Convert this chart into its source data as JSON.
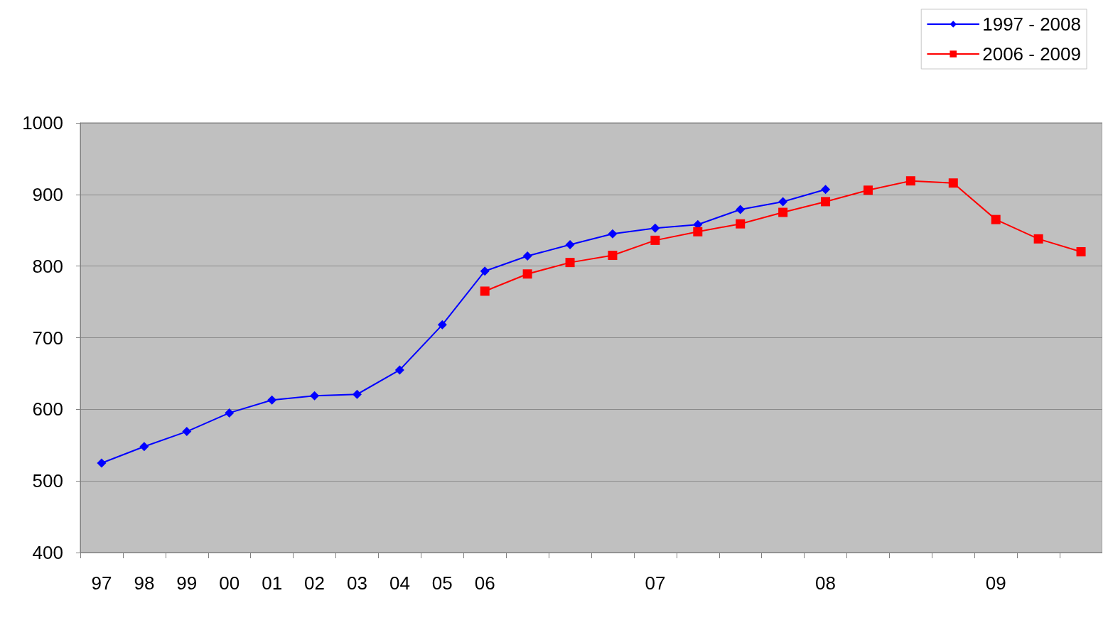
{
  "chart_data": {
    "type": "line",
    "categories": [
      "97",
      "98",
      "99",
      "00",
      "01",
      "02",
      "03",
      "04",
      "05",
      "06",
      null,
      null,
      null,
      "07",
      null,
      null,
      null,
      "08",
      null,
      null,
      null,
      "09",
      null,
      null
    ],
    "series": [
      {
        "name": "1997 - 2008",
        "color": "#0000ff",
        "marker": "diamond",
        "values": [
          525,
          548,
          569,
          595,
          613,
          619,
          621,
          655,
          718,
          793,
          814,
          830,
          845,
          853,
          858,
          879,
          890,
          907,
          null,
          null,
          null,
          null,
          null,
          null
        ]
      },
      {
        "name": "2006 - 2009",
        "color": "#ff0000",
        "marker": "square",
        "values": [
          null,
          null,
          null,
          null,
          null,
          null,
          null,
          null,
          null,
          765,
          789,
          805,
          815,
          836,
          848,
          859,
          875,
          890,
          906,
          919,
          916,
          865,
          838,
          820
        ]
      }
    ],
    "ylim": [
      400,
      1000
    ],
    "yticks": [
      400,
      500,
      600,
      700,
      800,
      900,
      1000
    ],
    "grid": "y",
    "legend": "top right",
    "line_style": "solid"
  }
}
